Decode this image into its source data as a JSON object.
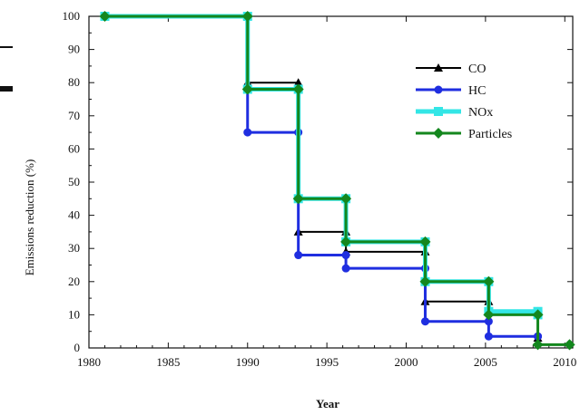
{
  "chart_data": {
    "type": "line",
    "step": true,
    "title": "",
    "xlabel": "Year",
    "ylabel": "Emissions reduction (%)",
    "xlim": [
      1980,
      2010.5
    ],
    "ylim": [
      0,
      100
    ],
    "xticks": [
      1980,
      1985,
      1990,
      1995,
      2000,
      2005,
      2010
    ],
    "yticks": [
      0,
      10,
      20,
      30,
      40,
      50,
      60,
      70,
      80,
      90,
      100
    ],
    "grid": false,
    "legend_position": "top-right",
    "series": [
      {
        "name": "CO",
        "color": "#000000",
        "marker": "triangle",
        "x": [
          1981,
          1990,
          1993.2,
          1996.2,
          2001.2,
          2005.2,
          2008.3
        ],
        "y": [
          100,
          80,
          35,
          29,
          14,
          11,
          3
        ]
      },
      {
        "name": "HC",
        "color": "#1f2ee0",
        "marker": "circle",
        "x": [
          1981,
          1990,
          1993.2,
          1996.2,
          2001.2,
          2005.2,
          2008.3
        ],
        "y": [
          100,
          65,
          28,
          24,
          8,
          3.5,
          3.5
        ]
      },
      {
        "name": "NOx",
        "color": "#33e6e6",
        "marker": "square",
        "x": [
          1981,
          1990,
          1993.2,
          1996.2,
          2001.2,
          2005.2,
          2008.3
        ],
        "y": [
          100,
          78,
          45,
          32,
          20,
          11,
          10
        ]
      },
      {
        "name": "Particles",
        "color": "#14871e",
        "marker": "diamond",
        "x": [
          1981,
          1990,
          1993.2,
          1996.2,
          2001.2,
          2005.2,
          2008.3,
          2010.3
        ],
        "y": [
          100,
          78,
          45,
          32,
          20,
          10,
          1,
          1
        ]
      }
    ]
  }
}
